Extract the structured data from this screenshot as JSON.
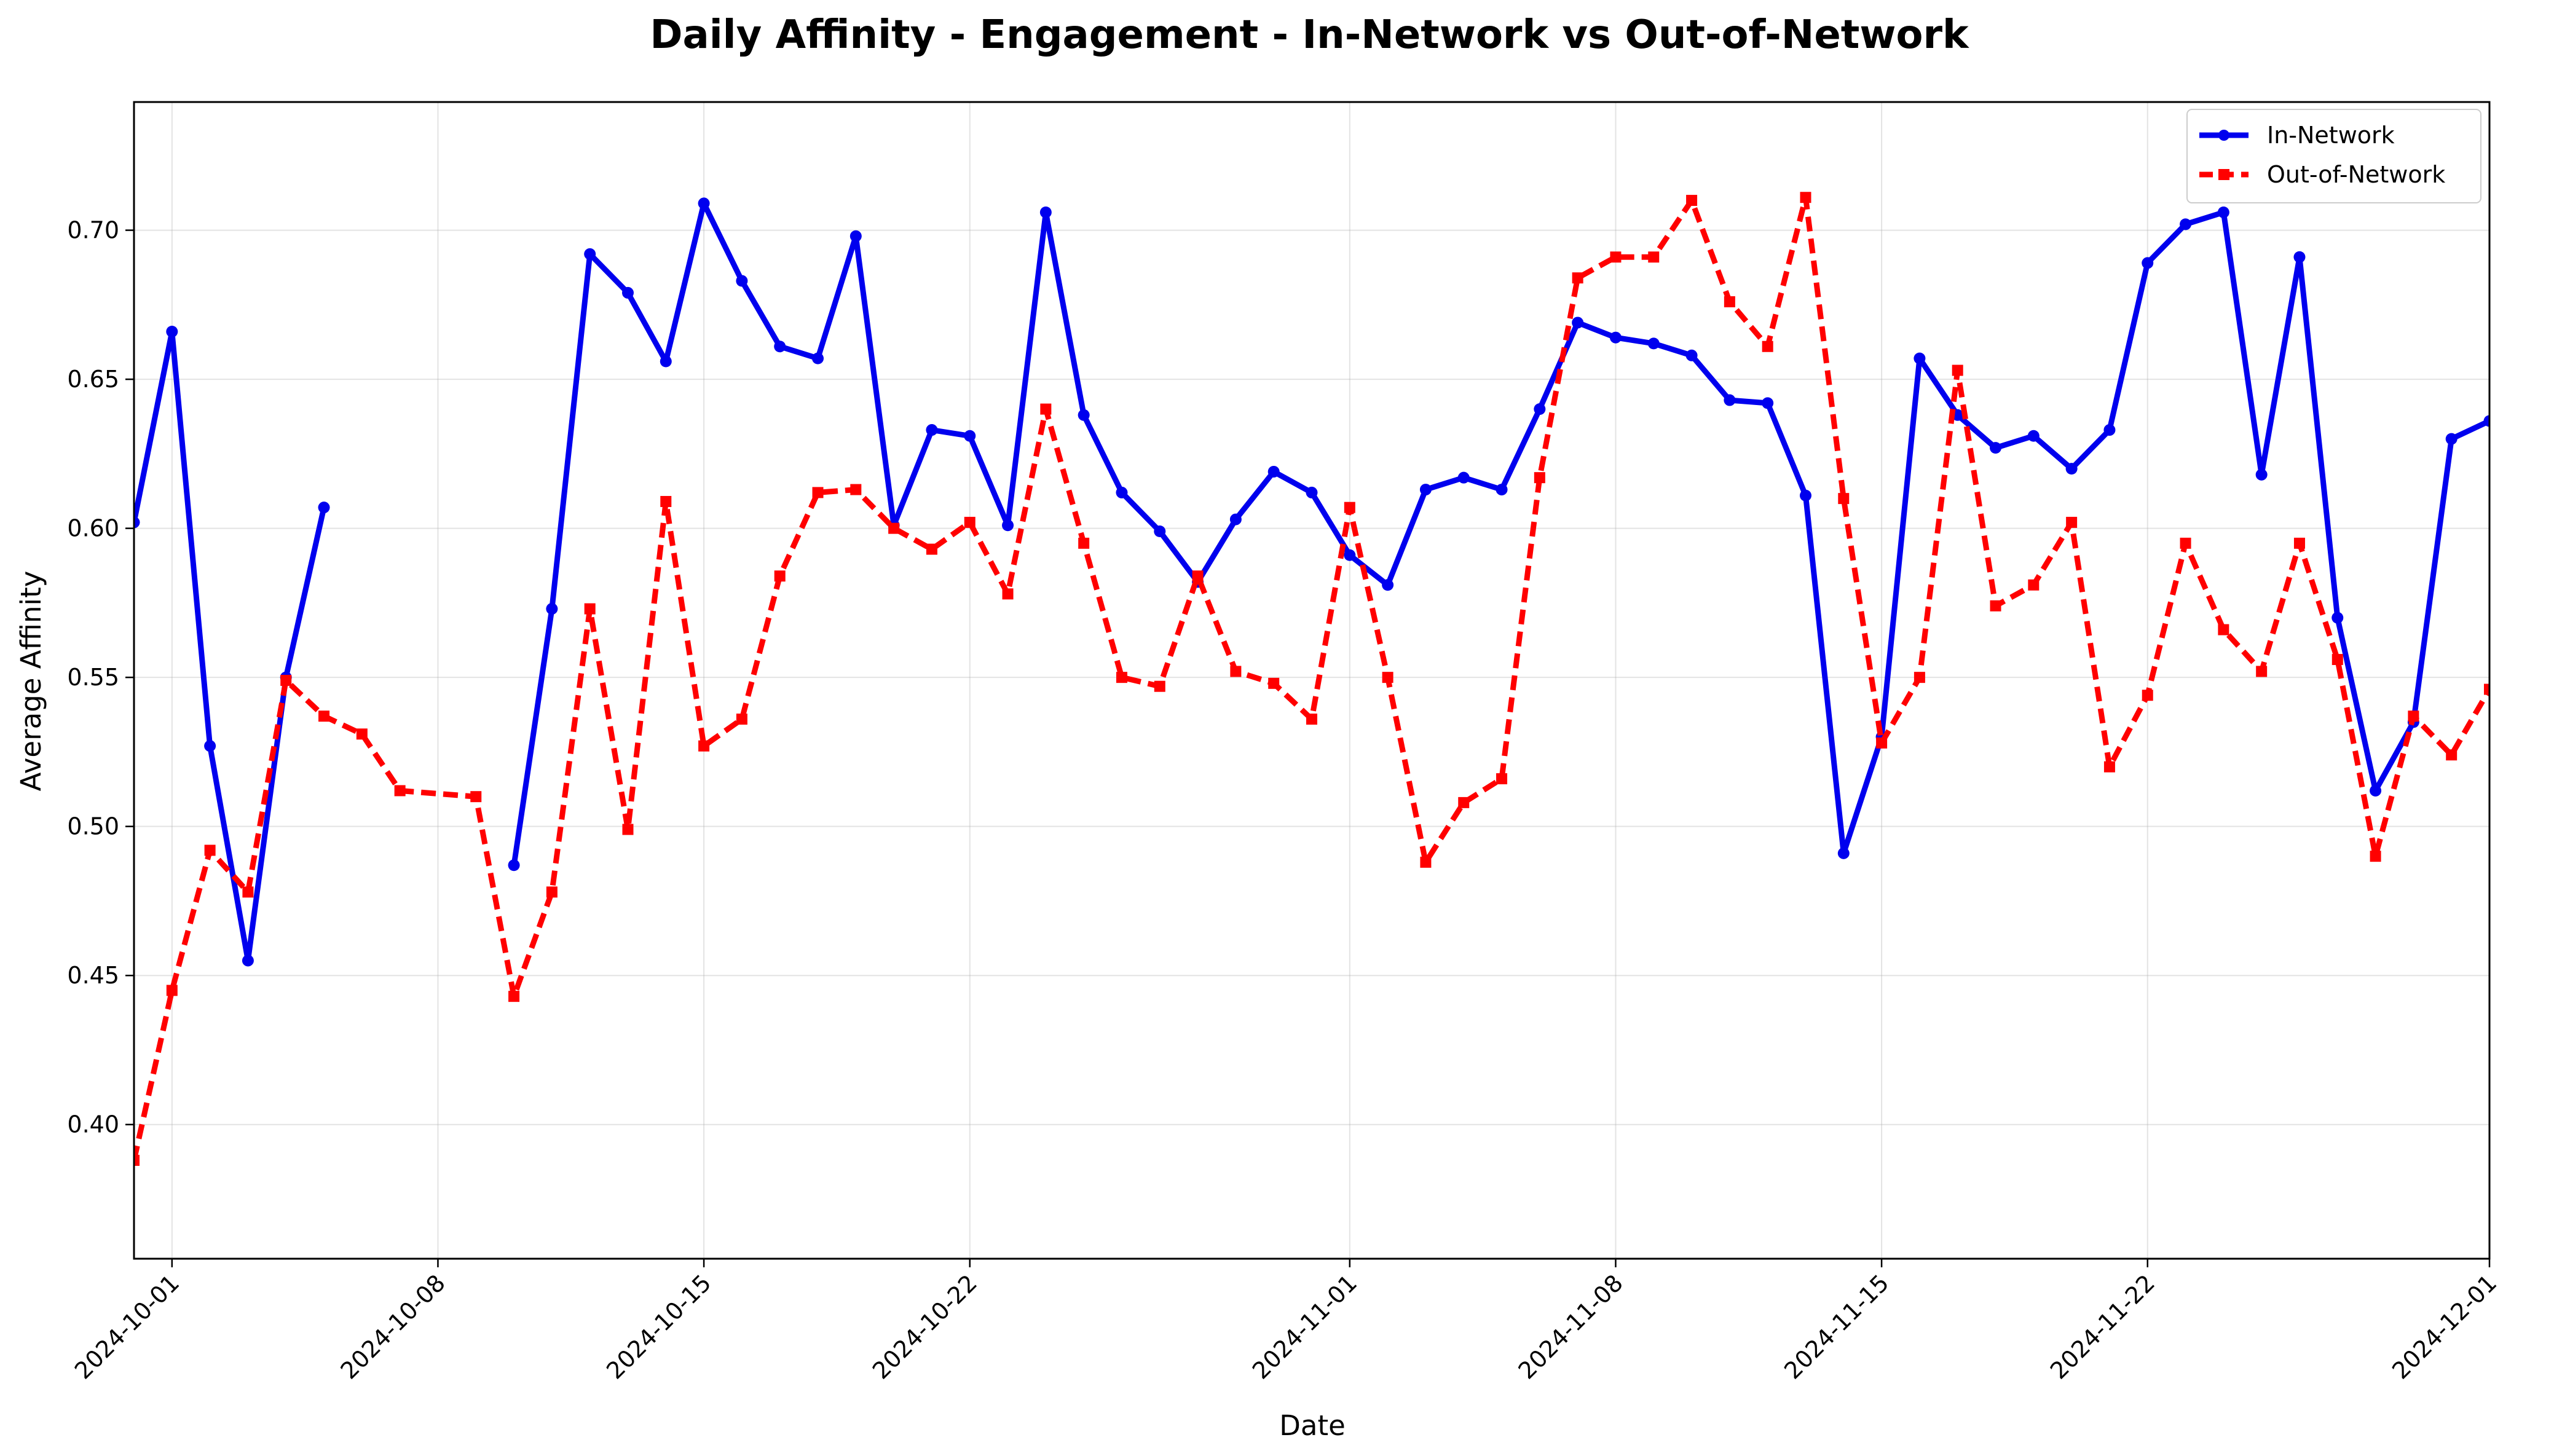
{
  "chart_data": {
    "type": "line",
    "title": "Daily Affinity - Engagement - In-Network vs Out-of-Network",
    "xlabel": "Date",
    "ylabel": "Average Affinity",
    "xlim": [
      "2024-09-30",
      "2024-12-01"
    ],
    "ylim": [
      0.355,
      0.743
    ],
    "grid": true,
    "legend_position": "top-right",
    "x_ticks": [
      "2024-10-01",
      "2024-10-08",
      "2024-10-15",
      "2024-10-22",
      "2024-11-01",
      "2024-11-08",
      "2024-11-15",
      "2024-11-22",
      "2024-12-01"
    ],
    "y_ticks": [
      "0.40",
      "0.45",
      "0.50",
      "0.55",
      "0.60",
      "0.65",
      "0.70"
    ],
    "series": [
      {
        "name": "In-Network",
        "color": "#0000ee",
        "style": "solid",
        "marker": "circle",
        "points": [
          [
            "2024-09-30",
            0.602
          ],
          [
            "2024-10-01",
            0.666
          ],
          [
            "2024-10-02",
            0.527
          ],
          [
            "2024-10-03",
            0.455
          ],
          [
            "2024-10-04",
            0.55
          ],
          [
            "2024-10-05",
            0.607
          ],
          null,
          [
            "2024-10-10",
            0.487
          ],
          [
            "2024-10-11",
            0.573
          ],
          [
            "2024-10-12",
            0.692
          ],
          [
            "2024-10-13",
            0.679
          ],
          [
            "2024-10-14",
            0.656
          ],
          [
            "2024-10-15",
            0.709
          ],
          [
            "2024-10-16",
            0.683
          ],
          [
            "2024-10-17",
            0.661
          ],
          [
            "2024-10-18",
            0.657
          ],
          [
            "2024-10-19",
            0.698
          ],
          [
            "2024-10-20",
            0.601
          ],
          [
            "2024-10-21",
            0.633
          ],
          [
            "2024-10-22",
            0.631
          ],
          [
            "2024-10-23",
            0.601
          ],
          [
            "2024-10-24",
            0.706
          ],
          [
            "2024-10-25",
            0.638
          ],
          [
            "2024-10-26",
            0.612
          ],
          [
            "2024-10-27",
            0.599
          ],
          [
            "2024-10-28",
            0.582
          ],
          [
            "2024-10-29",
            0.603
          ],
          [
            "2024-10-30",
            0.619
          ],
          [
            "2024-10-31",
            0.612
          ],
          [
            "2024-11-01",
            0.591
          ],
          [
            "2024-11-02",
            0.581
          ],
          [
            "2024-11-03",
            0.613
          ],
          [
            "2024-11-04",
            0.617
          ],
          [
            "2024-11-05",
            0.613
          ],
          [
            "2024-11-06",
            0.64
          ],
          [
            "2024-11-07",
            0.669
          ],
          [
            "2024-11-08",
            0.664
          ],
          [
            "2024-11-09",
            0.662
          ],
          [
            "2024-11-10",
            0.658
          ],
          [
            "2024-11-11",
            0.643
          ],
          [
            "2024-11-12",
            0.642
          ],
          [
            "2024-11-13",
            0.611
          ],
          [
            "2024-11-14",
            0.491
          ],
          [
            "2024-11-15",
            0.53
          ],
          [
            "2024-11-16",
            0.657
          ],
          [
            "2024-11-17",
            0.638
          ],
          [
            "2024-11-18",
            0.627
          ],
          [
            "2024-11-19",
            0.631
          ],
          [
            "2024-11-20",
            0.62
          ],
          [
            "2024-11-21",
            0.633
          ],
          [
            "2024-11-22",
            0.689
          ],
          [
            "2024-11-23",
            0.702
          ],
          [
            "2024-11-24",
            0.706
          ],
          [
            "2024-11-25",
            0.618
          ],
          [
            "2024-11-26",
            0.691
          ],
          [
            "2024-11-27",
            0.57
          ],
          [
            "2024-11-28",
            0.512
          ],
          [
            "2024-11-29",
            0.535
          ],
          [
            "2024-11-30",
            0.63
          ],
          [
            "2024-12-01",
            0.636
          ]
        ]
      },
      {
        "name": "Out-of-Network",
        "color": "#ff0000",
        "style": "dashed",
        "marker": "square",
        "points": [
          [
            "2024-09-30",
            0.388
          ],
          [
            "2024-10-01",
            0.445
          ],
          [
            "2024-10-02",
            0.492
          ],
          [
            "2024-10-03",
            0.478
          ],
          [
            "2024-10-04",
            0.549
          ],
          [
            "2024-10-05",
            0.537
          ],
          [
            "2024-10-06",
            0.531
          ],
          [
            "2024-10-07",
            0.512
          ],
          [
            "2024-10-09",
            0.51
          ],
          [
            "2024-10-10",
            0.443
          ],
          [
            "2024-10-11",
            0.478
          ],
          [
            "2024-10-12",
            0.573
          ],
          [
            "2024-10-13",
            0.499
          ],
          [
            "2024-10-14",
            0.609
          ],
          [
            "2024-10-15",
            0.527
          ],
          [
            "2024-10-16",
            0.536
          ],
          [
            "2024-10-17",
            0.584
          ],
          [
            "2024-10-18",
            0.612
          ],
          [
            "2024-10-19",
            0.613
          ],
          [
            "2024-10-20",
            0.6
          ],
          [
            "2024-10-21",
            0.593
          ],
          [
            "2024-10-22",
            0.602
          ],
          [
            "2024-10-23",
            0.578
          ],
          [
            "2024-10-24",
            0.64
          ],
          [
            "2024-10-25",
            0.595
          ],
          [
            "2024-10-26",
            0.55
          ],
          [
            "2024-10-27",
            0.547
          ],
          [
            "2024-10-28",
            0.584
          ],
          [
            "2024-10-29",
            0.552
          ],
          [
            "2024-10-30",
            0.548
          ],
          [
            "2024-10-31",
            0.536
          ],
          [
            "2024-11-01",
            0.607
          ],
          [
            "2024-11-02",
            0.55
          ],
          [
            "2024-11-03",
            0.488
          ],
          [
            "2024-11-04",
            0.508
          ],
          [
            "2024-11-05",
            0.516
          ],
          [
            "2024-11-06",
            0.617
          ],
          [
            "2024-11-07",
            0.684
          ],
          [
            "2024-11-08",
            0.691
          ],
          [
            "2024-11-09",
            0.691
          ],
          [
            "2024-11-10",
            0.71
          ],
          [
            "2024-11-11",
            0.676
          ],
          [
            "2024-11-12",
            0.661
          ],
          [
            "2024-11-13",
            0.711
          ],
          [
            "2024-11-14",
            0.61
          ],
          [
            "2024-11-15",
            0.528
          ],
          [
            "2024-11-16",
            0.55
          ],
          [
            "2024-11-17",
            0.653
          ],
          [
            "2024-11-18",
            0.574
          ],
          [
            "2024-11-19",
            0.581
          ],
          [
            "2024-11-20",
            0.602
          ],
          [
            "2024-11-21",
            0.52
          ],
          [
            "2024-11-22",
            0.544
          ],
          [
            "2024-11-23",
            0.595
          ],
          [
            "2024-11-24",
            0.566
          ],
          [
            "2024-11-25",
            0.552
          ],
          [
            "2024-11-26",
            0.595
          ],
          [
            "2024-11-27",
            0.556
          ],
          [
            "2024-11-28",
            0.49
          ],
          [
            "2024-11-29",
            0.537
          ],
          [
            "2024-11-30",
            0.524
          ],
          [
            "2024-12-01",
            0.546
          ]
        ]
      }
    ]
  }
}
